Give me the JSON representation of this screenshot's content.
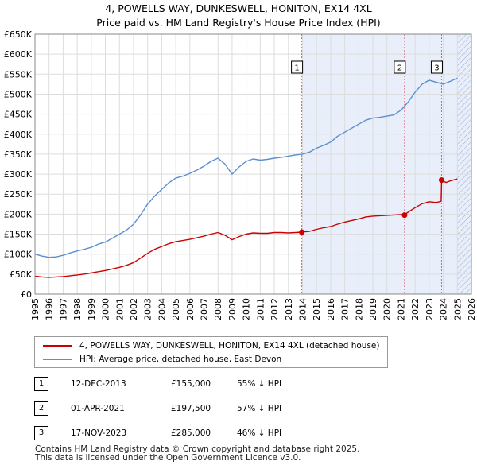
{
  "title_line1": "4, POWELLS WAY, DUNKESWELL, HONITON, EX14 4XL",
  "title_line2": "Price paid vs. HM Land Registry's House Price Index (HPI)",
  "legend": {
    "property": "4, POWELLS WAY, DUNKESWELL, HONITON, EX14 4XL (detached house)",
    "hpi": "HPI: Average price, detached house, East Devon"
  },
  "colors": {
    "property": "#cc0000",
    "hpi": "#5b8fd0",
    "shade": "#e8eefa",
    "marker_line": "#e06070"
  },
  "transactions": [
    {
      "num": "1",
      "date": "12-DEC-2013",
      "price": "£155,000",
      "hpi": "55% ↓ HPI"
    },
    {
      "num": "2",
      "date": "01-APR-2021",
      "price": "£197,500",
      "hpi": "57% ↓ HPI"
    },
    {
      "num": "3",
      "date": "17-NOV-2023",
      "price": "£285,000",
      "hpi": "46% ↓ HPI"
    }
  ],
  "footer_line1": "Contains HM Land Registry data © Crown copyright and database right 2025.",
  "footer_line2": "This data is licensed under the Open Government Licence v3.0.",
  "chart_data": {
    "type": "line",
    "xlim": [
      1995,
      2026
    ],
    "ylim": [
      0,
      650000
    ],
    "x_ticks": [
      1995,
      1996,
      1997,
      1998,
      1999,
      2000,
      2001,
      2002,
      2003,
      2004,
      2005,
      2006,
      2007,
      2008,
      2009,
      2010,
      2011,
      2012,
      2013,
      2014,
      2015,
      2016,
      2017,
      2018,
      2019,
      2020,
      2021,
      2022,
      2023,
      2024,
      2025,
      2026
    ],
    "y_ticks": [
      {
        "v": 0,
        "label": "£0"
      },
      {
        "v": 50000,
        "label": "£50K"
      },
      {
        "v": 100000,
        "label": "£100K"
      },
      {
        "v": 150000,
        "label": "£150K"
      },
      {
        "v": 200000,
        "label": "£200K"
      },
      {
        "v": 250000,
        "label": "£250K"
      },
      {
        "v": 300000,
        "label": "£300K"
      },
      {
        "v": 350000,
        "label": "£350K"
      },
      {
        "v": 400000,
        "label": "£400K"
      },
      {
        "v": 450000,
        "label": "£450K"
      },
      {
        "v": 500000,
        "label": "£500K"
      },
      {
        "v": 550000,
        "label": "£550K"
      },
      {
        "v": 600000,
        "label": "£600K"
      },
      {
        "v": 650000,
        "label": "£650K"
      }
    ],
    "grid": true,
    "shaded_span": [
      2013.95,
      2026
    ],
    "hatched_span": [
      2025.0,
      2026
    ],
    "sale_markers": [
      {
        "label": "1",
        "x": 2013.95,
        "y": 155000
      },
      {
        "label": "2",
        "x": 2021.25,
        "y": 197500
      },
      {
        "label": "3",
        "x": 2023.88,
        "y": 285000
      }
    ],
    "series": [
      {
        "name": "HPI: Average price, detached house, East Devon",
        "points": [
          [
            1995,
            100000
          ],
          [
            1995.5,
            95000
          ],
          [
            1996,
            92000
          ],
          [
            1996.5,
            93000
          ],
          [
            1997,
            97000
          ],
          [
            1997.5,
            103000
          ],
          [
            1998,
            108000
          ],
          [
            1998.5,
            112000
          ],
          [
            1999,
            117000
          ],
          [
            1999.5,
            125000
          ],
          [
            2000,
            130000
          ],
          [
            2000.5,
            140000
          ],
          [
            2001,
            150000
          ],
          [
            2001.5,
            160000
          ],
          [
            2002,
            175000
          ],
          [
            2002.5,
            198000
          ],
          [
            2003,
            225000
          ],
          [
            2003.5,
            245000
          ],
          [
            2004,
            262000
          ],
          [
            2004.5,
            278000
          ],
          [
            2005,
            290000
          ],
          [
            2005.5,
            295000
          ],
          [
            2006,
            302000
          ],
          [
            2006.5,
            310000
          ],
          [
            2007,
            320000
          ],
          [
            2007.5,
            332000
          ],
          [
            2008,
            340000
          ],
          [
            2008.5,
            325000
          ],
          [
            2009,
            300000
          ],
          [
            2009.5,
            318000
          ],
          [
            2010,
            332000
          ],
          [
            2010.5,
            338000
          ],
          [
            2011,
            335000
          ],
          [
            2011.5,
            337000
          ],
          [
            2012,
            340000
          ],
          [
            2012.5,
            342000
          ],
          [
            2013,
            345000
          ],
          [
            2013.5,
            348000
          ],
          [
            2014,
            350000
          ],
          [
            2014.5,
            355000
          ],
          [
            2015,
            365000
          ],
          [
            2015.5,
            372000
          ],
          [
            2016,
            380000
          ],
          [
            2016.5,
            395000
          ],
          [
            2017,
            405000
          ],
          [
            2017.5,
            415000
          ],
          [
            2018,
            425000
          ],
          [
            2018.5,
            435000
          ],
          [
            2019,
            440000
          ],
          [
            2019.5,
            442000
          ],
          [
            2020,
            445000
          ],
          [
            2020.5,
            448000
          ],
          [
            2021,
            460000
          ],
          [
            2021.5,
            480000
          ],
          [
            2022,
            505000
          ],
          [
            2022.5,
            525000
          ],
          [
            2023,
            535000
          ],
          [
            2023.5,
            530000
          ],
          [
            2024,
            525000
          ],
          [
            2024.5,
            532000
          ],
          [
            2025,
            540000
          ]
        ]
      },
      {
        "name": "4, POWELLS WAY, DUNKESWELL, HONITON, EX14 4XL (detached house)",
        "points": [
          [
            1995,
            45000
          ],
          [
            1995.5,
            43000
          ],
          [
            1996,
            42000
          ],
          [
            1996.5,
            43000
          ],
          [
            1997,
            44000
          ],
          [
            1997.5,
            46000
          ],
          [
            1998,
            48000
          ],
          [
            1998.5,
            50000
          ],
          [
            1999,
            53000
          ],
          [
            1999.5,
            56000
          ],
          [
            2000,
            59000
          ],
          [
            2000.5,
            63000
          ],
          [
            2001,
            67000
          ],
          [
            2001.5,
            72000
          ],
          [
            2002,
            79000
          ],
          [
            2002.5,
            90000
          ],
          [
            2003,
            102000
          ],
          [
            2003.5,
            112000
          ],
          [
            2004,
            119000
          ],
          [
            2004.5,
            126000
          ],
          [
            2005,
            131000
          ],
          [
            2005.5,
            134000
          ],
          [
            2006,
            137000
          ],
          [
            2006.5,
            141000
          ],
          [
            2007,
            145000
          ],
          [
            2007.5,
            150000
          ],
          [
            2008,
            154000
          ],
          [
            2008.5,
            147000
          ],
          [
            2009,
            136000
          ],
          [
            2009.5,
            144000
          ],
          [
            2010,
            150000
          ],
          [
            2010.5,
            153000
          ],
          [
            2011,
            152000
          ],
          [
            2011.5,
            152000
          ],
          [
            2012,
            154000
          ],
          [
            2012.5,
            154000
          ],
          [
            2013,
            153000
          ],
          [
            2013.5,
            154000
          ],
          [
            2013.95,
            155000
          ],
          [
            2014.5,
            157000
          ],
          [
            2015,
            162000
          ],
          [
            2015.5,
            166000
          ],
          [
            2016,
            169000
          ],
          [
            2016.5,
            175000
          ],
          [
            2017,
            180000
          ],
          [
            2017.5,
            184000
          ],
          [
            2018,
            188000
          ],
          [
            2018.5,
            193000
          ],
          [
            2019,
            195000
          ],
          [
            2019.5,
            196000
          ],
          [
            2020,
            197000
          ],
          [
            2020.5,
            198000
          ],
          [
            2021,
            199000
          ],
          [
            2021.25,
            197500
          ],
          [
            2021.5,
            205000
          ],
          [
            2022,
            216000
          ],
          [
            2022.5,
            226000
          ],
          [
            2023,
            231000
          ],
          [
            2023.5,
            229000
          ],
          [
            2023.85,
            232000
          ],
          [
            2023.88,
            285000
          ],
          [
            2024.2,
            279000
          ],
          [
            2024.5,
            283000
          ],
          [
            2025,
            288000
          ]
        ]
      }
    ]
  }
}
